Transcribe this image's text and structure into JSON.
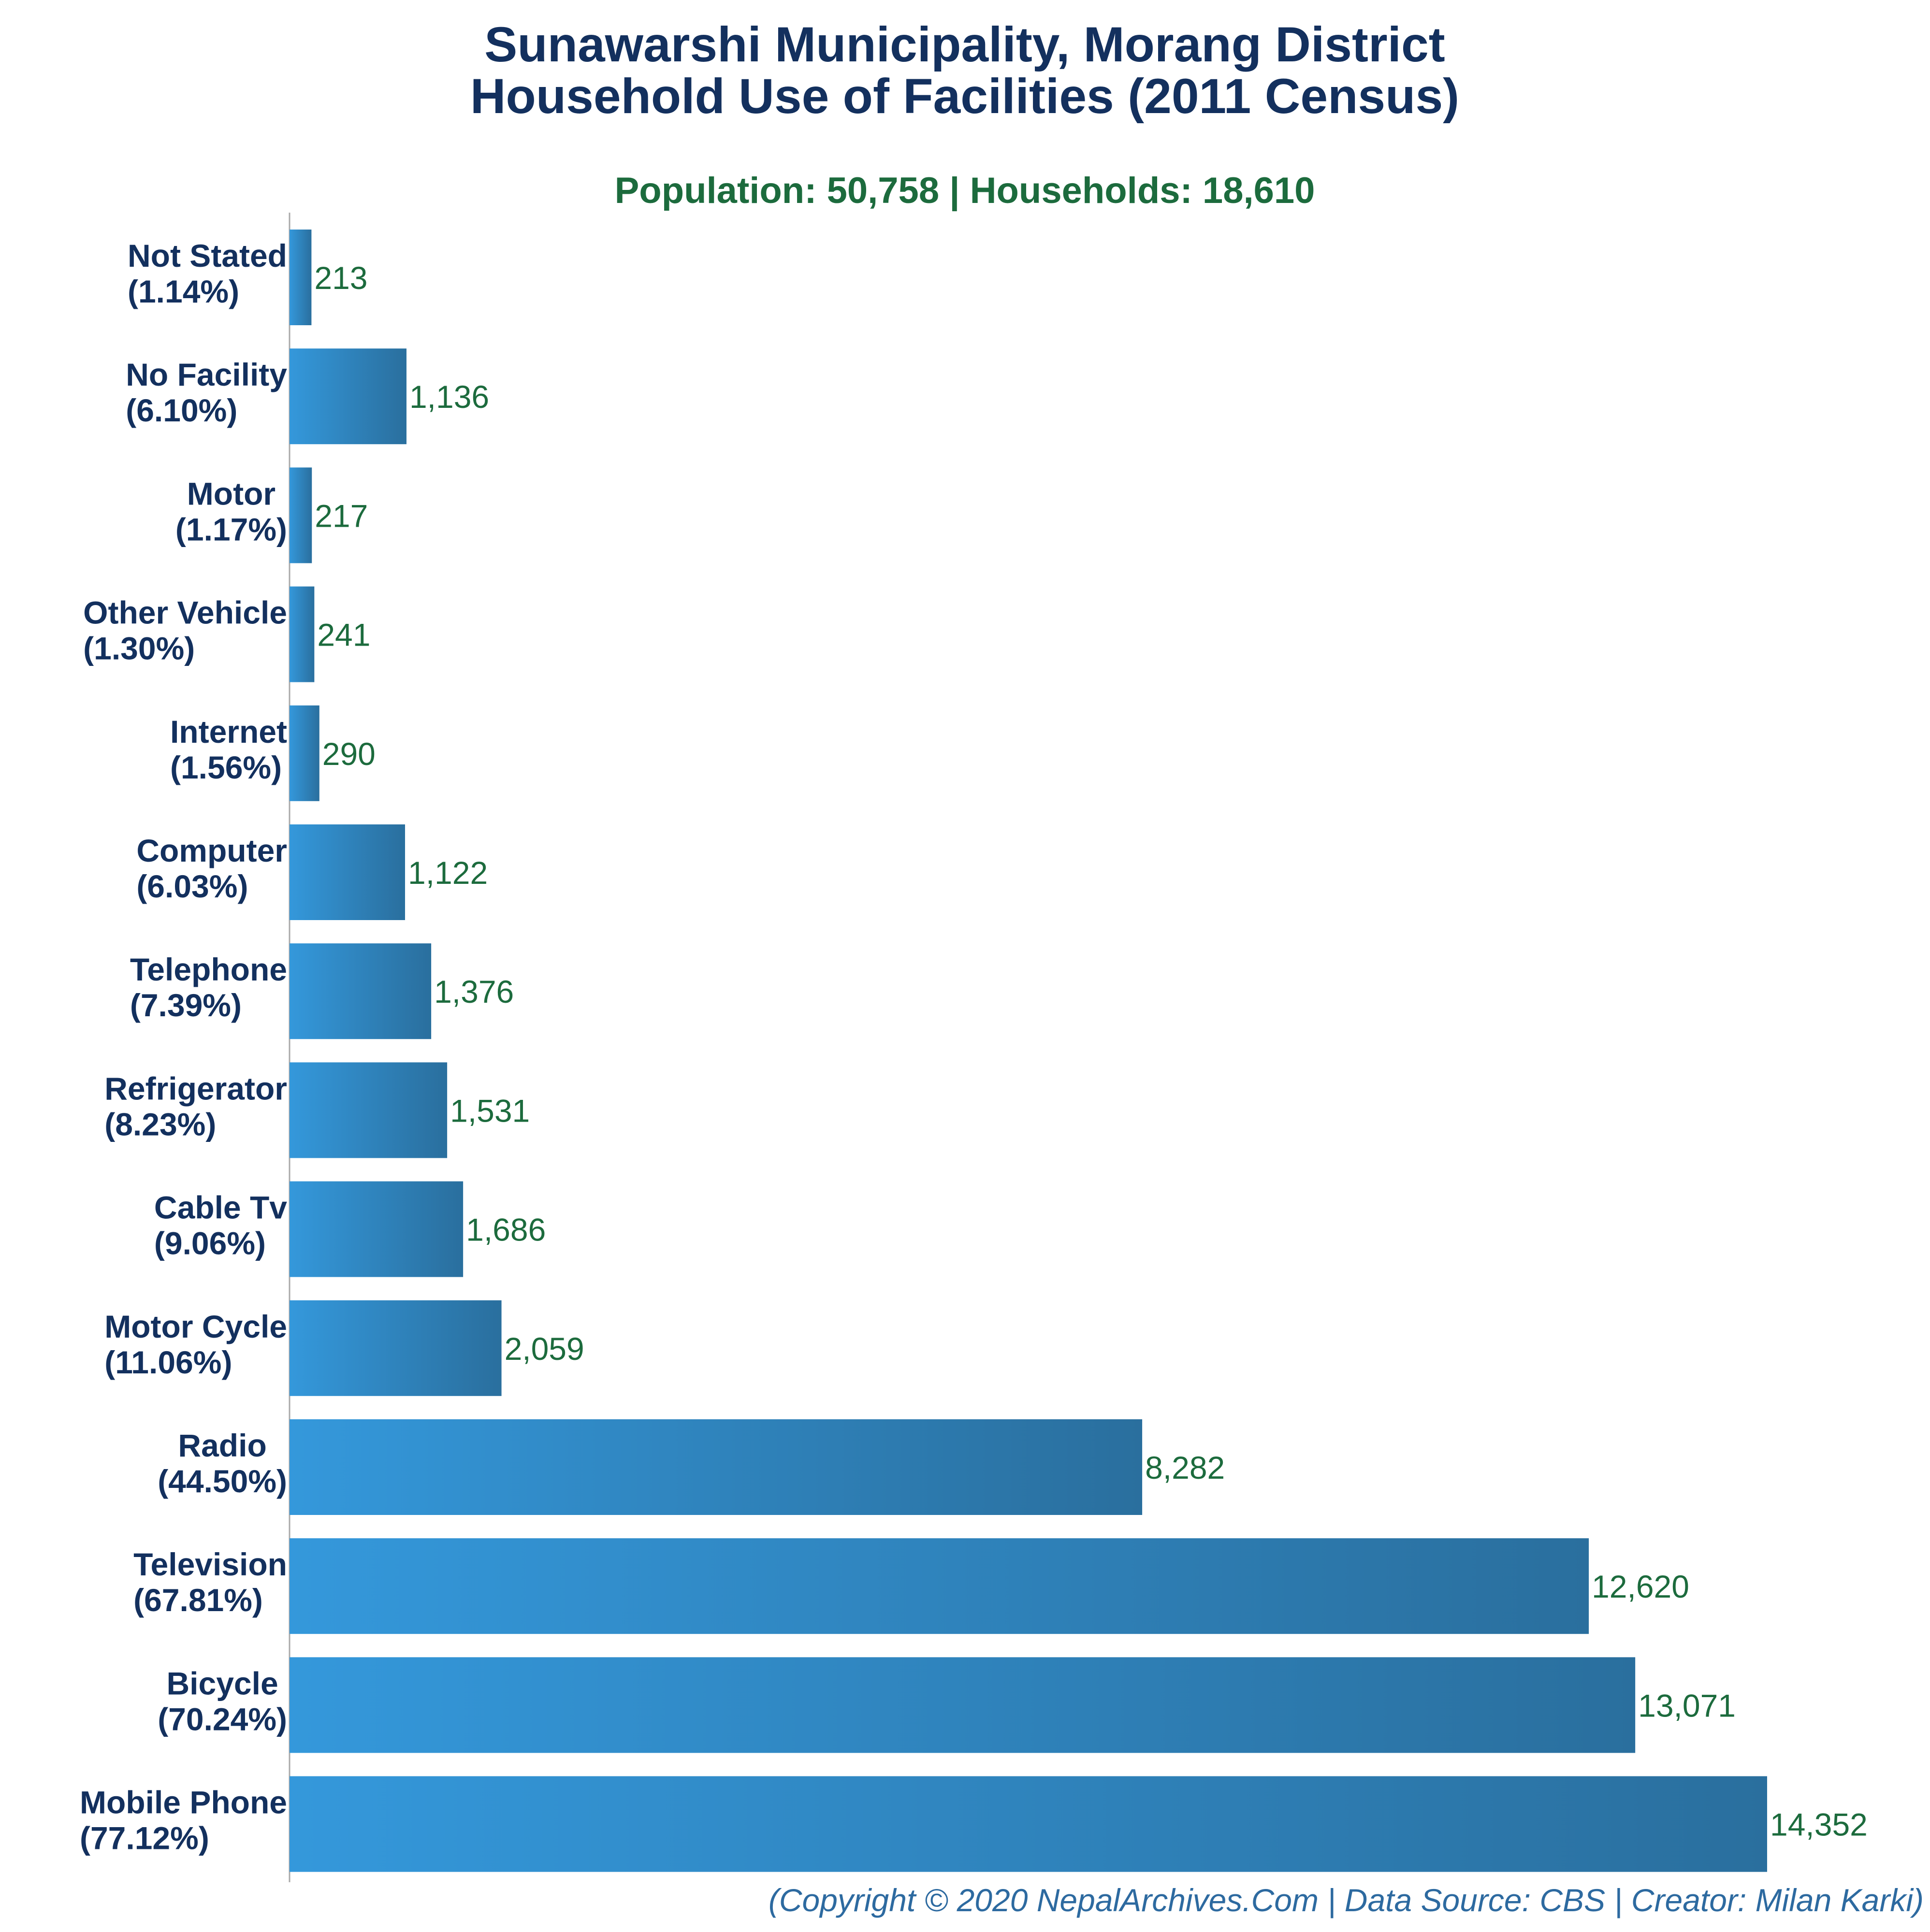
{
  "chart_data": {
    "type": "bar",
    "orientation": "horizontal",
    "title": "Sunawarshi Municipality, Morang District",
    "title_line2": "Household Use of Facilities (2011 Census)",
    "subtitle": "Population: 50,758 | Households: 18,610",
    "footer": "(Copyright © 2020 NepalArchives.Com | Data Source: CBS | Creator: Milan Karki)",
    "categories": [
      "Not Stated",
      "No Facility",
      "Motor",
      "Other Vehicle",
      "Internet",
      "Computer",
      "Telephone",
      "Refrigerator",
      "Cable Tv",
      "Motor Cycle",
      "Radio",
      "Television",
      "Bicycle",
      "Mobile Phone"
    ],
    "percent_labels": [
      "(1.14%)",
      "(6.10%)",
      "(1.17%)",
      "(1.30%)",
      "(1.56%)",
      "(6.03%)",
      "(7.39%)",
      "(8.23%)",
      "(9.06%)",
      "(11.06%)",
      "(44.50%)",
      "(67.81%)",
      "(70.24%)",
      "(77.12%)"
    ],
    "values": [
      213,
      1136,
      217,
      241,
      290,
      1122,
      1376,
      1531,
      1686,
      2059,
      8282,
      12620,
      13071,
      14352
    ],
    "value_labels": [
      "213",
      "1,136",
      "217",
      "241",
      "290",
      "1,122",
      "1,376",
      "1,531",
      "1,686",
      "2,059",
      "8,282",
      "12,620",
      "13,071",
      "14,352"
    ],
    "xlim": [
      0,
      14352
    ],
    "grid": false,
    "legend": "none",
    "colors": {
      "bar_start": "#3498db",
      "bar_end": "#2a6f9e",
      "title": "#13305e",
      "subtitle": "#1c6b3d",
      "category_label": "#13305e",
      "value_label": "#1c6b3d",
      "footer": "#2d6aa0",
      "axis": "#aaaaaa"
    }
  }
}
